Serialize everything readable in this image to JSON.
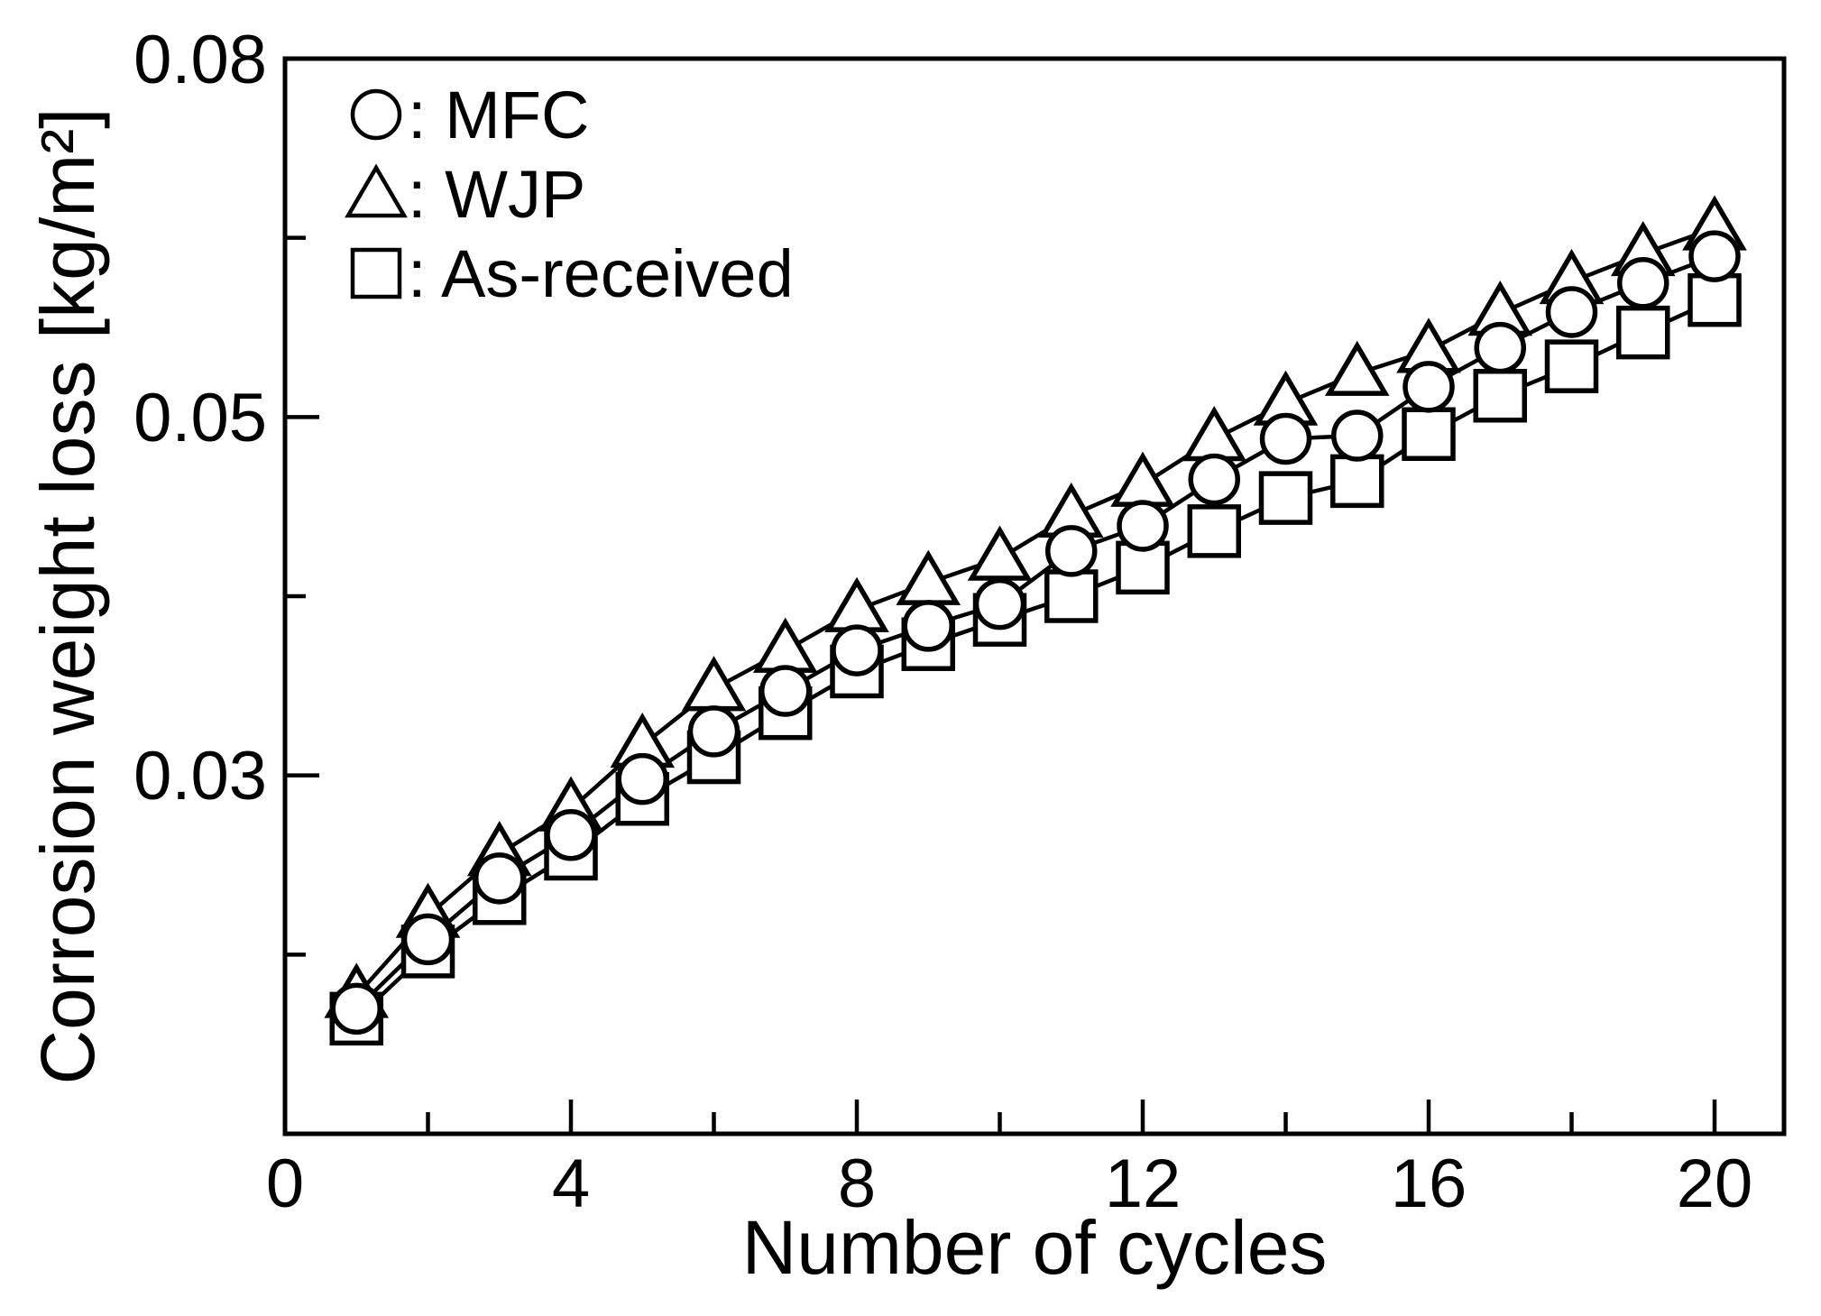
{
  "figure": {
    "background_color": "#ffffff",
    "ink_color": "#000000"
  },
  "legend": {
    "items": [
      {
        "marker": "circle",
        "series": "MFC",
        "label": ": MFC"
      },
      {
        "marker": "triangle",
        "series": "WJP",
        "label": ": WJP"
      },
      {
        "marker": "square",
        "series": "As-received",
        "label": ": As-received"
      }
    ]
  },
  "chart_data": {
    "type": "line",
    "title": "",
    "xlabel": "Number of cycles",
    "ylabel": "Corrosion weight loss [kg/m²]",
    "x": [
      1,
      2,
      3,
      4,
      5,
      6,
      7,
      8,
      9,
      10,
      11,
      12,
      13,
      14,
      15,
      16,
      17,
      18,
      19,
      20
    ],
    "series": [
      {
        "name": "MFC",
        "marker": "circle",
        "values": [
          0.0235,
          0.0257,
          0.0278,
          0.0294,
          0.0316,
          0.0336,
          0.0354,
          0.0373,
          0.0385,
          0.0396,
          0.0424,
          0.0438,
          0.0465,
          0.049,
          0.0492,
          0.0524,
          0.0551,
          0.0577,
          0.0599,
          0.062
        ]
      },
      {
        "name": "WJP",
        "marker": "triangle",
        "values": [
          0.0239,
          0.0265,
          0.0287,
          0.0304,
          0.033,
          0.0355,
          0.0373,
          0.0393,
          0.0407,
          0.042,
          0.0444,
          0.0462,
          0.049,
          0.0513,
          0.0533,
          0.0549,
          0.0576,
          0.06,
          0.0622,
          0.0643
        ]
      },
      {
        "name": "As-received",
        "marker": "square",
        "values": [
          0.0232,
          0.0253,
          0.0271,
          0.0287,
          0.0308,
          0.0325,
          0.0344,
          0.0363,
          0.0376,
          0.0388,
          0.04,
          0.0415,
          0.0435,
          0.0454,
          0.0464,
          0.0493,
          0.0518,
          0.0538,
          0.0562,
          0.0586
        ]
      }
    ],
    "xlim": [
      0,
      21
    ],
    "ylim": [
      0.02,
      0.08
    ],
    "y_scale": "log",
    "grid": false,
    "legend_position": "top-left",
    "x_ticks_major": [
      0,
      4,
      8,
      12,
      16,
      20
    ],
    "x_ticks_minor": [
      2,
      6,
      10,
      14,
      18
    ],
    "x_tick_labels": [
      "0",
      "4",
      "8",
      "12",
      "16",
      "20"
    ],
    "y_tick_labels": [
      "0.08",
      "0.05",
      "0.03"
    ],
    "y_tick_label_values": [
      0.08,
      0.05,
      0.03
    ]
  }
}
